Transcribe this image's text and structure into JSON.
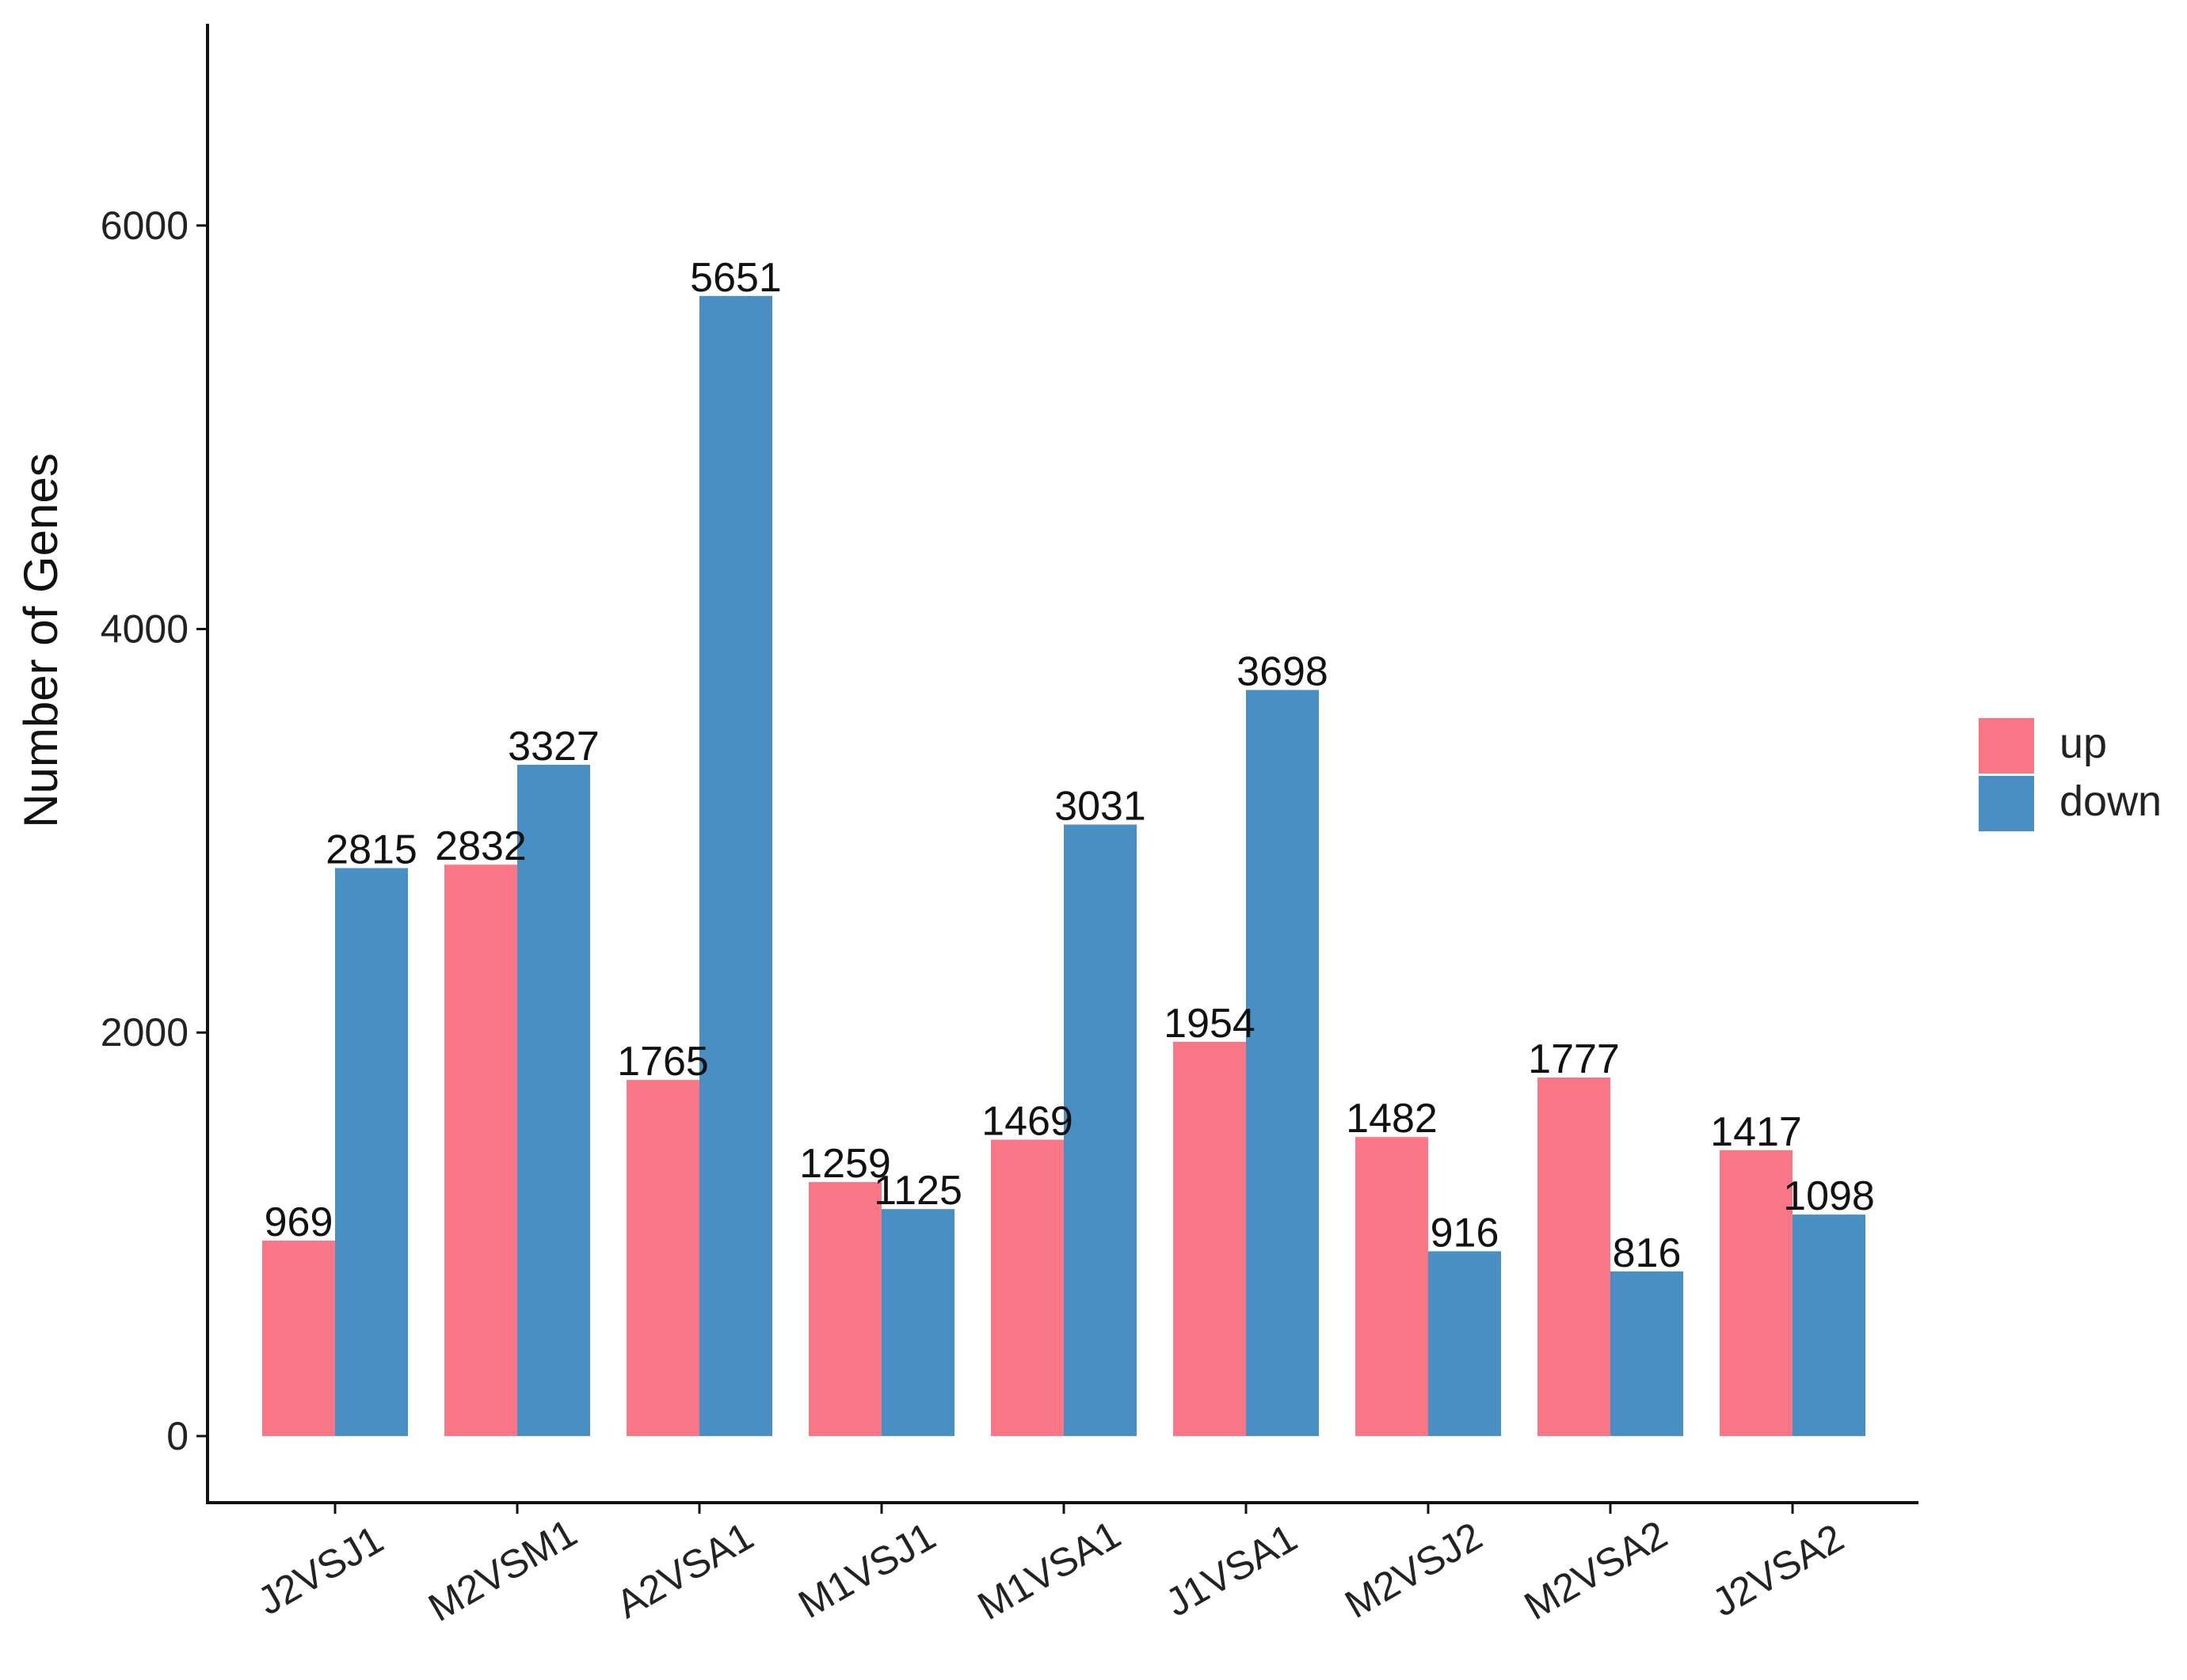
{
  "chart_data": {
    "type": "bar",
    "title": "",
    "xlabel": "",
    "ylabel": "Number of Genes",
    "ylim": [
      -330,
      7000
    ],
    "yticks": [
      0,
      2000,
      4000,
      6000
    ],
    "grid": false,
    "legend_position": "right",
    "categories": [
      "J2VSJ1",
      "M2VSM1",
      "A2VSA1",
      "M1VSJ1",
      "M1VSA1",
      "J1VSA1",
      "M2VSJ2",
      "M2VSA2",
      "J2VSA2"
    ],
    "series": [
      {
        "name": "up",
        "color": "#F87686",
        "values": [
          969,
          2832,
          1765,
          1259,
          1469,
          1954,
          1482,
          1777,
          1417
        ]
      },
      {
        "name": "down",
        "color": "#4A8FC3",
        "values": [
          2815,
          3327,
          5651,
          1125,
          3031,
          3698,
          916,
          816,
          1098
        ]
      }
    ]
  }
}
